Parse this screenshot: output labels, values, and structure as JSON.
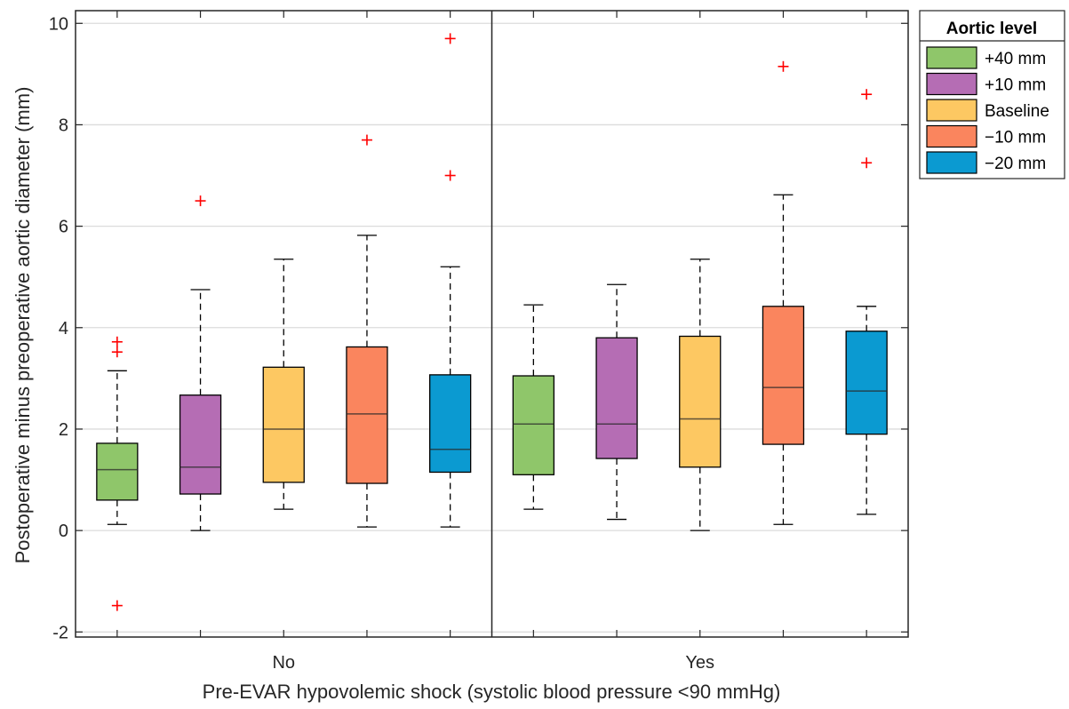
{
  "chart_data": {
    "type": "boxplot",
    "xlabel": "Pre-EVAR hypovolemic shock (systolic blood pressure <90 mmHg)",
    "ylabel": "Postoperative minus preoperative aortic diameter (mm)",
    "ylim": [
      -2.1,
      10.25
    ],
    "yticks": [
      -2,
      0,
      2,
      4,
      6,
      8,
      10
    ],
    "grid": "horizontal",
    "legend": {
      "title": "Aortic level",
      "placement": "outside-top-right",
      "entries": [
        "+40 mm",
        "+10 mm",
        "Baseline",
        "−10 mm",
        "−20 mm"
      ]
    },
    "series_colors": [
      "#8fc66a",
      "#b56db4",
      "#fdc862",
      "#fa855e",
      "#0b9ad1"
    ],
    "groups": [
      {
        "label": "No",
        "boxes": [
          {
            "series": "+40 mm",
            "whisker_low": 0.12,
            "q1": 0.6,
            "median": 1.2,
            "q3": 1.72,
            "whisker_high": 3.15,
            "outliers": [
              3.72,
              3.52,
              -1.48
            ]
          },
          {
            "series": "+10 mm",
            "whisker_low": 0.0,
            "q1": 0.72,
            "median": 1.25,
            "q3": 2.67,
            "whisker_high": 4.75,
            "outliers": [
              6.5
            ]
          },
          {
            "series": "Baseline",
            "whisker_low": 0.42,
            "q1": 0.95,
            "median": 2.0,
            "q3": 3.22,
            "whisker_high": 5.35,
            "outliers": []
          },
          {
            "series": "−10 mm",
            "whisker_low": 0.07,
            "q1": 0.93,
            "median": 2.3,
            "q3": 3.62,
            "whisker_high": 5.82,
            "outliers": [
              7.7
            ]
          },
          {
            "series": "−20 mm",
            "whisker_low": 0.07,
            "q1": 1.15,
            "median": 1.6,
            "q3": 3.07,
            "whisker_high": 5.2,
            "outliers": [
              9.7,
              7.0
            ]
          }
        ]
      },
      {
        "label": "Yes",
        "boxes": [
          {
            "series": "+40 mm",
            "whisker_low": 0.42,
            "q1": 1.1,
            "median": 2.1,
            "q3": 3.05,
            "whisker_high": 4.45,
            "outliers": []
          },
          {
            "series": "+10 mm",
            "whisker_low": 0.22,
            "q1": 1.42,
            "median": 2.1,
            "q3": 3.8,
            "whisker_high": 4.85,
            "outliers": []
          },
          {
            "series": "Baseline",
            "whisker_low": 0.0,
            "q1": 1.25,
            "median": 2.2,
            "q3": 3.83,
            "whisker_high": 5.35,
            "outliers": []
          },
          {
            "series": "−10 mm",
            "whisker_low": 0.12,
            "q1": 1.7,
            "median": 2.82,
            "q3": 4.42,
            "whisker_high": 6.62,
            "outliers": [
              9.15
            ]
          },
          {
            "series": "−20 mm",
            "whisker_low": 0.32,
            "q1": 1.9,
            "median": 2.75,
            "q3": 3.93,
            "whisker_high": 4.42,
            "outliers": [
              8.6,
              7.25
            ]
          }
        ]
      }
    ]
  }
}
